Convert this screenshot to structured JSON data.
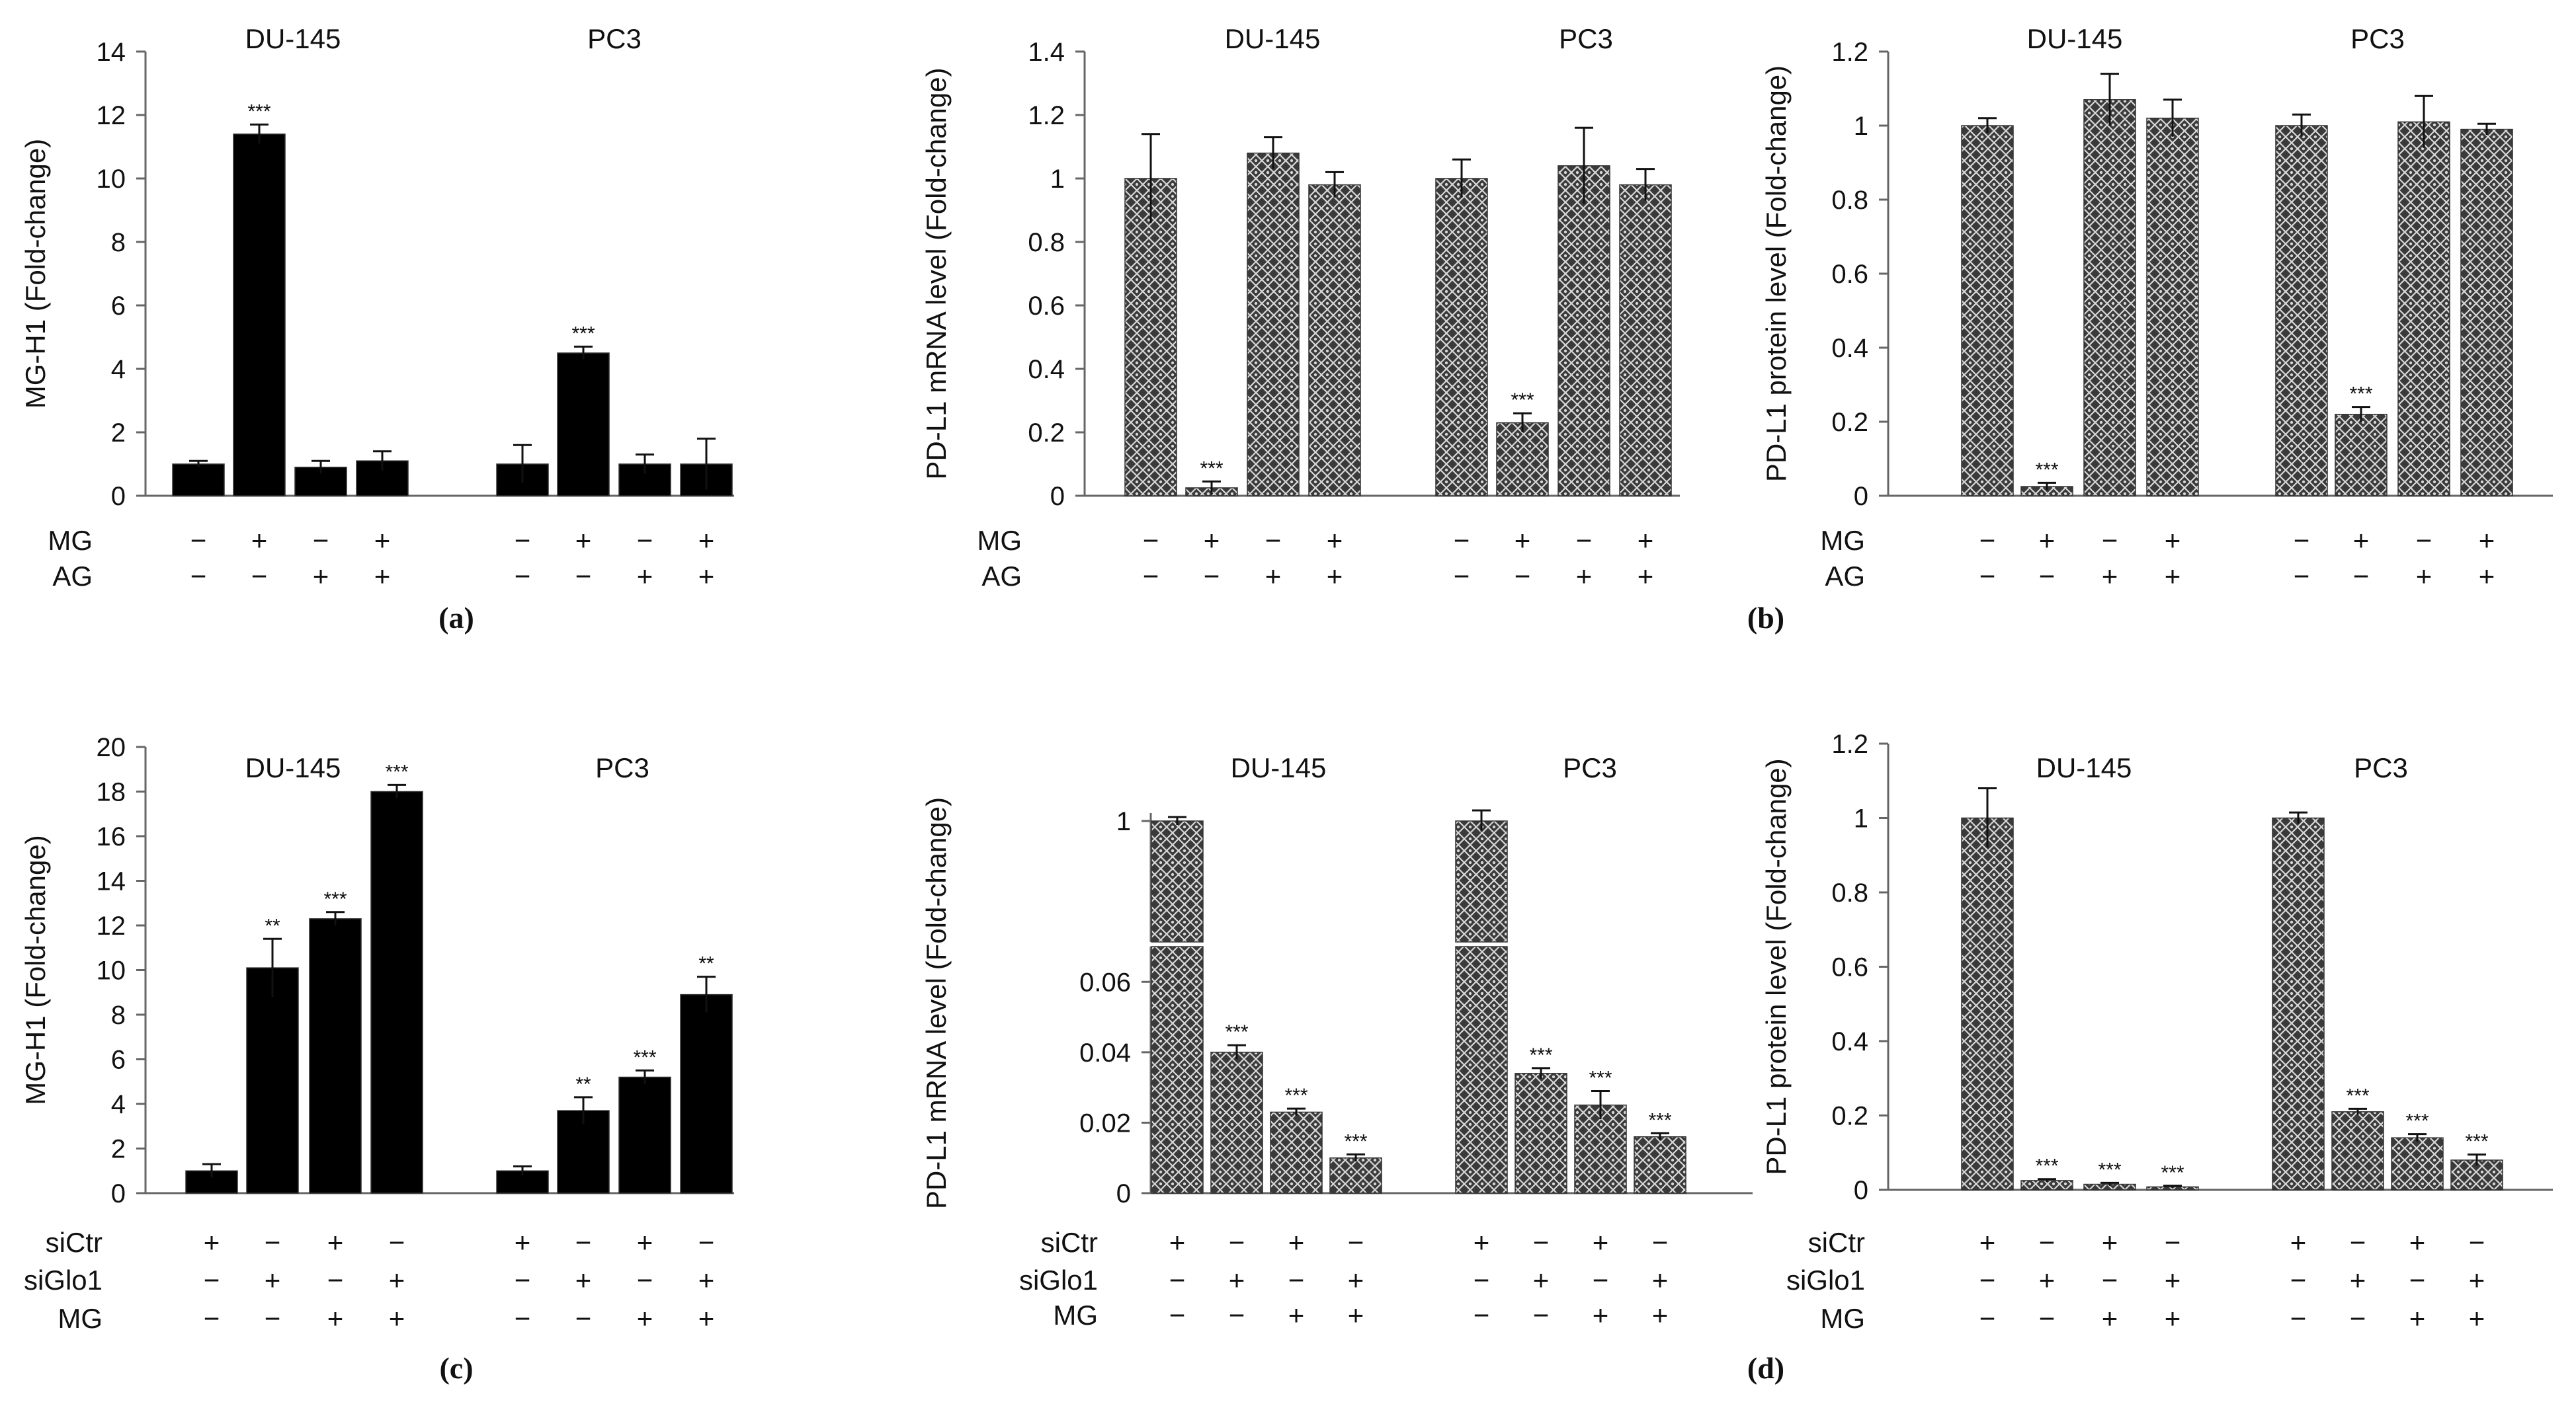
{
  "panels": [
    {
      "id": "a",
      "label": "(a)"
    },
    {
      "id": "b",
      "label": "(b)"
    },
    {
      "id": "c",
      "label": "(c)"
    },
    {
      "id": "d",
      "label": "(d)"
    }
  ],
  "chart_data": [
    {
      "id": "a-mg-h1",
      "panel": "a",
      "type": "bar",
      "style": "solid",
      "title": "",
      "xlabel": "",
      "ylabel": "MG-H1 (Fold-change)",
      "ylim": [
        0,
        14
      ],
      "yticks": [
        "0",
        "2",
        "4",
        "6",
        "8",
        "10",
        "12",
        "14"
      ],
      "groups": [
        "DU-145",
        "PC3"
      ],
      "treatments": [
        {
          "name": "MG",
          "signs": [
            "−",
            "+",
            "−",
            "+",
            "−",
            "+",
            "−",
            "+"
          ]
        },
        {
          "name": "AG",
          "signs": [
            "−",
            "−",
            "+",
            "+",
            "−",
            "−",
            "+",
            "+"
          ]
        }
      ],
      "values": [
        1.0,
        11.4,
        0.9,
        1.1,
        1.0,
        4.5,
        1.0,
        1.0
      ],
      "errors": [
        0.1,
        0.3,
        0.2,
        0.3,
        0.6,
        0.2,
        0.3,
        0.8
      ],
      "annotations": [
        "",
        "***",
        "",
        "",
        "",
        "***",
        "",
        ""
      ]
    },
    {
      "id": "b-mrna",
      "panel": "b",
      "type": "bar",
      "style": "hatched",
      "title": "",
      "xlabel": "",
      "ylabel": "PD-L1 mRNA level (Fold-change)",
      "ylim": [
        0,
        1.4
      ],
      "yticks": [
        "0",
        "0.2",
        "0.4",
        "0.6",
        "0.8",
        "1",
        "1.2",
        "1.4"
      ],
      "groups": [
        "DU-145",
        "PC3"
      ],
      "treatments": [
        {
          "name": "MG",
          "signs": [
            "−",
            "+",
            "−",
            "+",
            "−",
            "+",
            "−",
            "+"
          ]
        },
        {
          "name": "AG",
          "signs": [
            "−",
            "−",
            "+",
            "+",
            "−",
            "−",
            "+",
            "+"
          ]
        }
      ],
      "values": [
        1.0,
        0.025,
        1.08,
        0.98,
        1.0,
        0.23,
        1.04,
        0.98
      ],
      "errors": [
        0.14,
        0.02,
        0.05,
        0.04,
        0.06,
        0.03,
        0.12,
        0.05
      ],
      "annotations": [
        "",
        "***",
        "",
        "",
        "",
        "***",
        "",
        ""
      ]
    },
    {
      "id": "b-protein",
      "panel": "b",
      "type": "bar",
      "style": "hatched",
      "title": "",
      "xlabel": "",
      "ylabel": "PD-L1 protein level (Fold-change)",
      "ylim": [
        0,
        1.2
      ],
      "yticks": [
        "0",
        "0.2",
        "0.4",
        "0.6",
        "0.8",
        "1",
        "1.2"
      ],
      "groups": [
        "DU-145",
        "PC3"
      ],
      "treatments": [
        {
          "name": "MG",
          "signs": [
            "−",
            "+",
            "−",
            "+",
            "−",
            "+",
            "−",
            "+"
          ]
        },
        {
          "name": "AG",
          "signs": [
            "−",
            "−",
            "+",
            "+",
            "−",
            "−",
            "+",
            "+"
          ]
        }
      ],
      "values": [
        1.0,
        0.025,
        1.07,
        1.02,
        1.0,
        0.22,
        1.01,
        0.99
      ],
      "errors": [
        0.02,
        0.01,
        0.07,
        0.05,
        0.03,
        0.02,
        0.07,
        0.015
      ],
      "annotations": [
        "",
        "***",
        "",
        "",
        "",
        "***",
        "",
        ""
      ]
    },
    {
      "id": "c-mg-h1",
      "panel": "c",
      "type": "bar",
      "style": "solid",
      "title": "",
      "xlabel": "",
      "ylabel": "MG-H1 (Fold-change)",
      "ylim": [
        0,
        20
      ],
      "yticks": [
        "0",
        "2",
        "4",
        "6",
        "8",
        "10",
        "12",
        "14",
        "16",
        "18",
        "20"
      ],
      "groups": [
        "DU-145",
        "PC3"
      ],
      "treatments": [
        {
          "name": "siCtr",
          "signs": [
            "+",
            "−",
            "+",
            "−",
            "+",
            "−",
            "+",
            "−"
          ]
        },
        {
          "name": "siGlo1",
          "signs": [
            "−",
            "+",
            "−",
            "+",
            "−",
            "+",
            "−",
            "+"
          ]
        },
        {
          "name": "MG",
          "signs": [
            "−",
            "−",
            "+",
            "+",
            "−",
            "−",
            "+",
            "+"
          ]
        }
      ],
      "values": [
        1.0,
        10.1,
        12.3,
        18.0,
        1.0,
        3.7,
        5.2,
        8.9
      ],
      "errors": [
        0.3,
        1.3,
        0.3,
        0.3,
        0.2,
        0.6,
        0.3,
        0.8
      ],
      "annotations": [
        "",
        "**",
        "***",
        "***",
        "",
        "**",
        "***",
        "**"
      ]
    },
    {
      "id": "d-mrna",
      "panel": "d",
      "type": "bar",
      "style": "hatched",
      "axis_break": true,
      "title": "",
      "xlabel": "",
      "ylabel": "PD-L1 mRNA level (Fold-change)",
      "yticks_lower": [
        "0",
        "0.02",
        "0.04",
        "0.06"
      ],
      "ylim_lower": [
        0,
        0.07
      ],
      "yticks_upper": [
        "1"
      ],
      "groups": [
        "DU-145",
        "PC3"
      ],
      "treatments": [
        {
          "name": "siCtr",
          "signs": [
            "+",
            "−",
            "+",
            "−",
            "+",
            "−",
            "+",
            "−"
          ]
        },
        {
          "name": "siGlo1",
          "signs": [
            "−",
            "+",
            "−",
            "+",
            "−",
            "+",
            "−",
            "+"
          ]
        },
        {
          "name": "MG",
          "signs": [
            "−",
            "−",
            "+",
            "+",
            "−",
            "−",
            "+",
            "+"
          ]
        }
      ],
      "values": [
        1.0,
        0.04,
        0.023,
        0.01,
        1.0,
        0.034,
        0.025,
        0.016
      ],
      "errors": [
        0.03,
        0.002,
        0.001,
        0.001,
        0.08,
        0.0015,
        0.004,
        0.001
      ],
      "annotations": [
        "",
        "***",
        "***",
        "***",
        "",
        "***",
        "***",
        "***"
      ]
    },
    {
      "id": "d-protein",
      "panel": "d",
      "type": "bar",
      "style": "hatched",
      "title": "",
      "xlabel": "",
      "ylabel": "PD-L1 protein level (Fold-change)",
      "ylim": [
        0,
        1.2
      ],
      "yticks": [
        "0",
        "0.2",
        "0.4",
        "0.6",
        "0.8",
        "1",
        "1.2"
      ],
      "groups": [
        "DU-145",
        "PC3"
      ],
      "treatments": [
        {
          "name": "siCtr",
          "signs": [
            "+",
            "−",
            "+",
            "−",
            "+",
            "−",
            "+",
            "−"
          ]
        },
        {
          "name": "siGlo1",
          "signs": [
            "−",
            "+",
            "−",
            "+",
            "−",
            "+",
            "−",
            "+"
          ]
        },
        {
          "name": "MG",
          "signs": [
            "−",
            "−",
            "+",
            "+",
            "−",
            "−",
            "+",
            "+"
          ]
        }
      ],
      "values": [
        1.0,
        0.025,
        0.015,
        0.008,
        1.0,
        0.21,
        0.14,
        0.08
      ],
      "errors": [
        0.08,
        0.004,
        0.004,
        0.003,
        0.015,
        0.008,
        0.01,
        0.015
      ],
      "annotations": [
        "",
        "***",
        "***",
        "***",
        "",
        "***",
        "***",
        "***"
      ]
    }
  ]
}
